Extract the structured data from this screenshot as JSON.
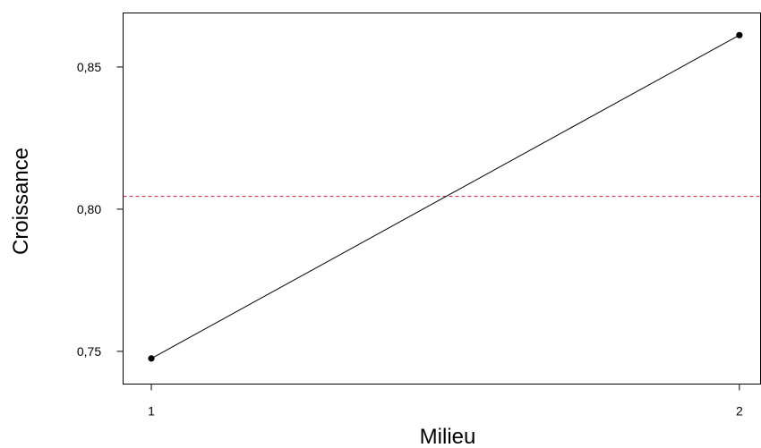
{
  "chart_data": {
    "type": "line",
    "title": "",
    "xlabel": "Milieu",
    "ylabel": "Croissance",
    "x": [
      1,
      2
    ],
    "x_tick_labels": [
      "1",
      "2"
    ],
    "series": [
      {
        "values": [
          0.7475,
          0.8612
        ],
        "color": "#000000"
      }
    ],
    "reference_line": {
      "y": 0.8045,
      "color": "#c0253f",
      "style": "dashed"
    },
    "y_ticks": [
      0.75,
      0.8,
      0.85
    ],
    "y_tick_labels": [
      "0,75",
      "0,80",
      "0,85"
    ],
    "ylim": [
      0.7385,
      0.869
    ],
    "xlim": [
      0.952,
      2.036
    ],
    "grid": false,
    "legend": "none"
  }
}
